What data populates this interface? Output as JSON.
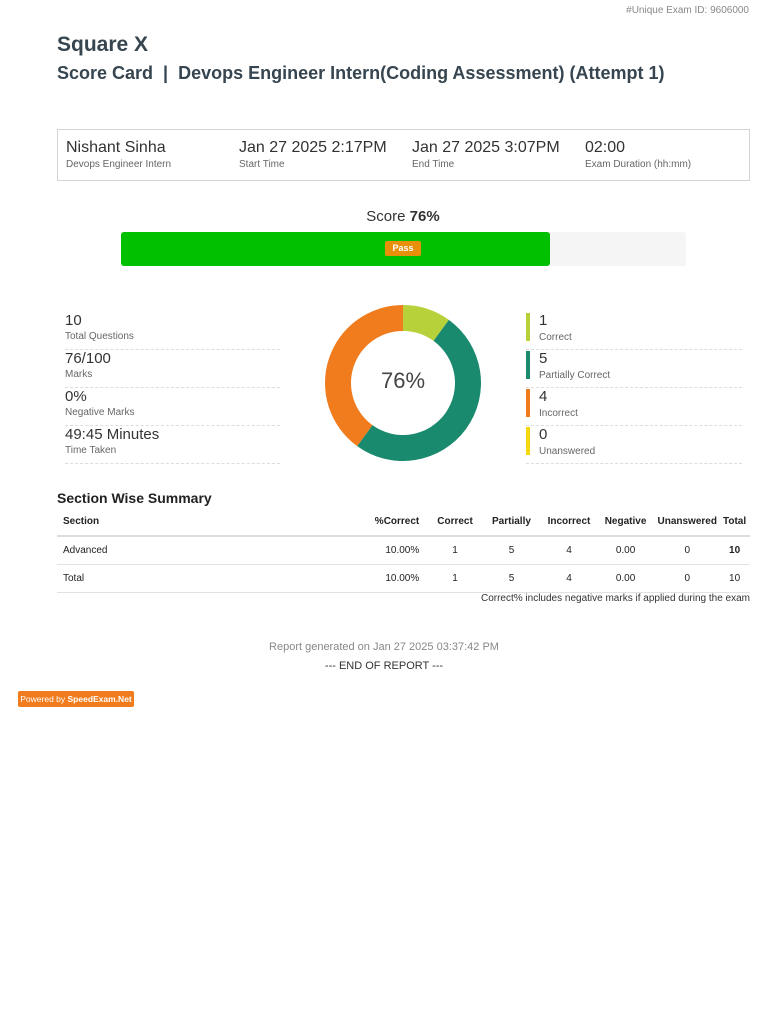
{
  "header": {
    "exam_id": "#Unique Exam ID: 9606000",
    "org_name": "Square X",
    "report_title": "Score Card  |  Devops Engineer Intern(Coding Assessment) (Attempt 1)"
  },
  "candidate": {
    "name": "Nishant Sinha",
    "role": "Devops Engineer Intern",
    "start_time": "Jan 27 2025 2:17PM",
    "start_label": "Start Time",
    "end_time": "Jan 27 2025 3:07PM",
    "end_label": "End Time",
    "duration": "02:00",
    "duration_label": "Exam Duration (hh:mm)"
  },
  "score": {
    "label": "Score",
    "value": "76%",
    "fraction": 0.76,
    "status": "Pass",
    "fill_color": "#00c000",
    "badge_color": "#e8900a"
  },
  "stats": [
    {
      "value": "10",
      "label": "Total Questions"
    },
    {
      "value": "76/100",
      "label": "Marks"
    },
    {
      "value": "0%",
      "label": "Negative Marks"
    },
    {
      "value": "49:45 Minutes",
      "label": "Time Taken"
    }
  ],
  "chart_data": {
    "type": "pie",
    "center_label": "76%",
    "categories": [
      "Correct",
      "Partially Correct",
      "Incorrect",
      "Unanswered"
    ],
    "values": [
      1,
      5,
      4,
      0
    ],
    "colors": [
      "#b6d13a",
      "#1a8a6e",
      "#f07c1e",
      "#f5d80b"
    ]
  },
  "legend": [
    {
      "value": "1",
      "label": "Correct",
      "color": "#b6d13a"
    },
    {
      "value": "5",
      "label": "Partially Correct",
      "color": "#1a8a6e"
    },
    {
      "value": "4",
      "label": "Incorrect",
      "color": "#f07c1e"
    },
    {
      "value": "0",
      "label": "Unanswered",
      "color": "#f5d80b"
    }
  ],
  "section_summary": {
    "title": "Section Wise Summary",
    "columns": [
      "Section",
      "%Correct",
      "Correct",
      "Partially",
      "Incorrect",
      "Negative",
      "Unanswered",
      "Total"
    ],
    "rows": [
      [
        "Advanced",
        "10.00%",
        "1",
        "5",
        "4",
        "0.00",
        "0",
        "10"
      ],
      [
        "Total",
        "10.00%",
        "1",
        "5",
        "4",
        "0.00",
        "0",
        "10"
      ]
    ],
    "note": "Correct% includes negative marks if applied during the exam"
  },
  "footer": {
    "generated": "Report generated on Jan 27 2025 03:37:42 PM",
    "end": "--- END OF REPORT ---",
    "powered_prefix": "Powered by ",
    "powered_brand": "SpeedExam.Net"
  }
}
